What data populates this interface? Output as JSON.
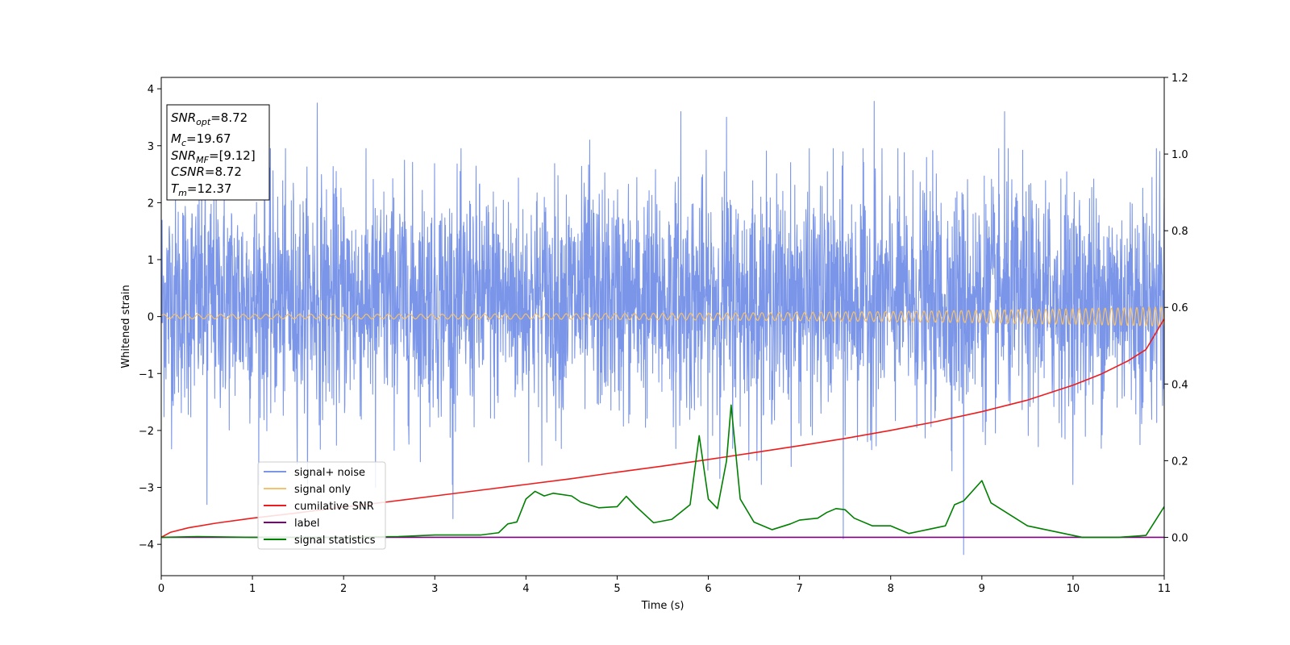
{
  "chart_data": {
    "type": "line",
    "xlabel": "Time (s)",
    "ylabel": "Whitened strain",
    "xlim": [
      0,
      11
    ],
    "ylim": [
      -4.55,
      4.2
    ],
    "y2lim": [
      -0.1,
      1.2
    ],
    "x_ticks": [
      "0",
      "1",
      "2",
      "3",
      "4",
      "5",
      "6",
      "7",
      "8",
      "9",
      "10",
      "11"
    ],
    "x_tick_values": [
      0,
      1,
      2,
      3,
      4,
      5,
      6,
      7,
      8,
      9,
      10,
      11
    ],
    "y_ticks": [
      "4",
      "3",
      "2",
      "1",
      "0",
      "−1",
      "−2",
      "−3",
      "−4"
    ],
    "y_tick_values": [
      4,
      3,
      2,
      1,
      0,
      -1,
      -2,
      -3,
      -4
    ],
    "y2_ticks": [
      "1.2",
      "1.0",
      "0.8",
      "0.6",
      "0.4",
      "0.2",
      "0.0"
    ],
    "y2_tick_values": [
      1.2,
      1.0,
      0.8,
      0.6,
      0.4,
      0.2,
      0.0
    ],
    "legend_placement": "lower-left",
    "stats": [
      {
        "var": "SNR",
        "sub": "opt",
        "value": "=8.72"
      },
      {
        "var": "M",
        "sub": "c",
        "value": "=19.67"
      },
      {
        "var": "SNR",
        "sub": "MF",
        "value": "=[9.12]"
      },
      {
        "var": "CSNR",
        "sub": "",
        "value": "=8.72"
      },
      {
        "var": "T",
        "sub": "m",
        "value": "=12.37"
      }
    ],
    "series": [
      {
        "name": "signal+ noise",
        "color": "#7b96e8",
        "axis": "left",
        "kind": "noise",
        "mean": 0.3,
        "amplitude": 1.0,
        "spikes": [
          [
            1.71,
            3.75
          ],
          [
            3.2,
            -3.55
          ],
          [
            5.7,
            3.6
          ],
          [
            6.2,
            3.5
          ],
          [
            7.48,
            -3.9
          ],
          [
            7.82,
            3.78
          ],
          [
            8.8,
            -4.18
          ],
          [
            9.25,
            3.6
          ],
          [
            4.7,
            3.1
          ],
          [
            2.35,
            -3.0
          ],
          [
            0.5,
            -3.3
          ],
          [
            10.95,
            2.9
          ]
        ]
      },
      {
        "name": "signal only",
        "color": "#f5c16c",
        "axis": "left",
        "kind": "chirp",
        "x_start": 0,
        "x_end": 11,
        "amp_start": 0.04,
        "amp_end": 0.17
      },
      {
        "name": "cumilative SNR",
        "color": "#ee1c1c",
        "axis": "right",
        "x": [
          0,
          0.1,
          0.3,
          0.6,
          1,
          1.5,
          2,
          2.5,
          3,
          3.5,
          4,
          4.5,
          5,
          5.5,
          6,
          6.5,
          7,
          7.5,
          8,
          8.5,
          9,
          9.5,
          10,
          10.3,
          10.6,
          10.8,
          11
        ],
        "values": [
          0.0,
          0.013,
          0.025,
          0.037,
          0.05,
          0.064,
          0.079,
          0.093,
          0.108,
          0.123,
          0.138,
          0.153,
          0.17,
          0.186,
          0.203,
          0.221,
          0.239,
          0.258,
          0.279,
          0.302,
          0.328,
          0.358,
          0.397,
          0.425,
          0.46,
          0.49,
          0.57
        ]
      },
      {
        "name": "label",
        "color": "#800080",
        "axis": "right",
        "x": [
          0,
          11
        ],
        "values": [
          0.0,
          0.0
        ]
      },
      {
        "name": "signal statistics",
        "color": "#008000",
        "axis": "right",
        "x": [
          0,
          0.4,
          1,
          2,
          2.6,
          3,
          3.5,
          3.7,
          3.8,
          3.9,
          4.0,
          4.1,
          4.2,
          4.3,
          4.5,
          4.6,
          4.8,
          5.0,
          5.1,
          5.2,
          5.4,
          5.6,
          5.8,
          5.9,
          6.0,
          6.1,
          6.2,
          6.25,
          6.35,
          6.5,
          6.7,
          6.9,
          7.0,
          7.2,
          7.3,
          7.4,
          7.5,
          7.6,
          7.8,
          8.0,
          8.2,
          8.4,
          8.6,
          8.7,
          8.8,
          9.0,
          9.1,
          9.3,
          9.5,
          9.7,
          9.9,
          10.1,
          10.5,
          10.8,
          11
        ],
        "values": [
          0.0,
          0.002,
          0.0,
          0.0,
          0.002,
          0.006,
          0.006,
          0.012,
          0.035,
          0.04,
          0.1,
          0.12,
          0.108,
          0.115,
          0.108,
          0.092,
          0.077,
          0.08,
          0.107,
          0.082,
          0.038,
          0.047,
          0.085,
          0.265,
          0.1,
          0.075,
          0.2,
          0.345,
          0.1,
          0.04,
          0.02,
          0.035,
          0.045,
          0.05,
          0.065,
          0.075,
          0.072,
          0.05,
          0.03,
          0.03,
          0.01,
          0.02,
          0.03,
          0.085,
          0.095,
          0.148,
          0.09,
          0.06,
          0.03,
          0.02,
          0.01,
          0.0,
          0.0,
          0.005,
          0.08
        ]
      }
    ]
  }
}
